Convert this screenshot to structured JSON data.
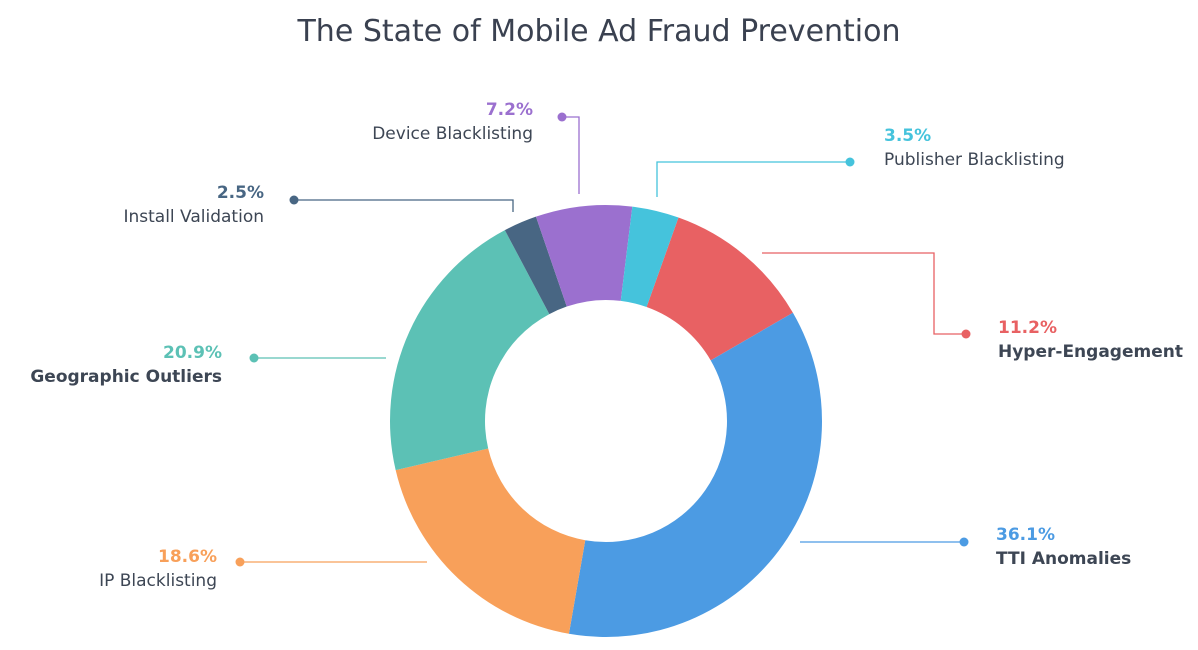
{
  "chart_data": {
    "type": "pie",
    "title": "The State of Mobile Ad Fraud Prevention",
    "slices": [
      {
        "label": "Hyper-Engagement",
        "value": 11.2,
        "display": "11.2%",
        "color": "#e86163",
        "bold": true
      },
      {
        "label": "TTI Anomalies",
        "value": 36.1,
        "display": "36.1%",
        "color": "#4c9be3",
        "bold": true
      },
      {
        "label": "IP Blacklisting",
        "value": 18.6,
        "display": "18.6%",
        "color": "#f8a05a",
        "bold": false
      },
      {
        "label": "Geographic Outliers",
        "value": 20.9,
        "display": "20.9%",
        "color": "#5cc1b5",
        "bold": true
      },
      {
        "label": "Install Validation",
        "value": 2.5,
        "display": "2.5%",
        "color": "#486683",
        "bold": false
      },
      {
        "label": "Device Blacklisting",
        "value": 7.2,
        "display": "7.2%",
        "color": "#9b70cf",
        "bold": false
      },
      {
        "label": "Publisher Blacklisting",
        "value": 3.5,
        "display": "3.5%",
        "color": "#45c3dc",
        "bold": false
      }
    ]
  }
}
